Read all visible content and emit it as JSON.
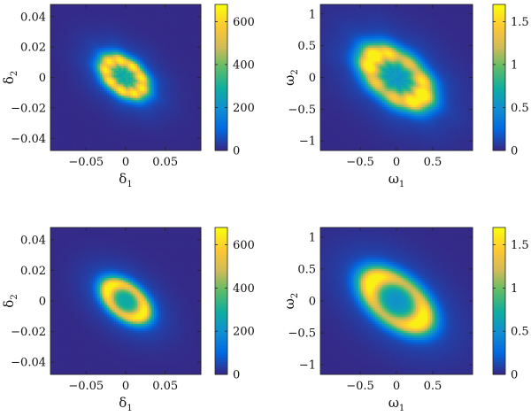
{
  "chart_data": [
    {
      "type": "heatmap",
      "description_key": "delta-density-top",
      "xlabel": "δ",
      "xlabel_sub": "1",
      "ylabel": "δ",
      "ylabel_sub": "2",
      "xlim": [
        -0.095,
        0.095
      ],
      "ylim": [
        -0.048,
        0.048
      ],
      "xticks": [
        -0.05,
        0,
        0.05
      ],
      "xtick_labels": [
        "−0.05",
        "0",
        "0.05"
      ],
      "yticks": [
        -0.04,
        -0.02,
        0,
        0.02,
        0.04
      ],
      "ytick_labels": [
        "−0.04",
        "−0.02",
        "0",
        "0.02",
        "0.04"
      ],
      "colorbar": {
        "min": 0,
        "max": 680,
        "ticks": [
          0,
          200,
          400,
          600
        ],
        "tick_labels": [
          "0",
          "200",
          "400",
          "600"
        ]
      },
      "field": {
        "cx": -0.002,
        "cy": 0.0005,
        "ring_radius": 0.028,
        "angle_deg": -40,
        "aspect": 0.62,
        "peak": 600,
        "center_value": 320,
        "halo": 110,
        "modulation": 0.0,
        "ripple": true
      }
    },
    {
      "type": "heatmap",
      "description_key": "omega-density-top",
      "xlabel": "ω",
      "xlabel_sub": "1",
      "ylabel": "ω",
      "ylabel_sub": "2",
      "xlim": [
        -1.05,
        1.05
      ],
      "ylim": [
        -1.15,
        1.15
      ],
      "xticks": [
        -0.5,
        0,
        0.5
      ],
      "xtick_labels": [
        "−0.5",
        "0",
        "0.5"
      ],
      "yticks": [
        -1,
        -0.5,
        0,
        0.5,
        1
      ],
      "ytick_labels": [
        "−1",
        "−0.5",
        "0",
        "0.5",
        "1"
      ],
      "colorbar": {
        "min": 0,
        "max": 1.7,
        "ticks": [
          0,
          0.5,
          1,
          1.5
        ],
        "tick_labels": [
          "0",
          "0.5",
          "1",
          "1.5"
        ]
      },
      "field": {
        "cx": 0.0,
        "cy": 0.0,
        "ring_radius": 0.45,
        "angle_deg": -40,
        "aspect": 0.6,
        "peak": 1.55,
        "center_value": 0.55,
        "halo": 0.25,
        "modulation": 0.22,
        "ripple": true
      }
    },
    {
      "type": "heatmap",
      "description_key": "delta-density-bottom",
      "xlabel": "δ",
      "xlabel_sub": "1",
      "ylabel": "δ",
      "ylabel_sub": "2",
      "xlim": [
        -0.095,
        0.095
      ],
      "ylim": [
        -0.048,
        0.048
      ],
      "xticks": [
        -0.05,
        0,
        0.05
      ],
      "xtick_labels": [
        "−0.05",
        "0",
        "0.05"
      ],
      "yticks": [
        -0.04,
        -0.02,
        0,
        0.02,
        0.04
      ],
      "ytick_labels": [
        "−0.04",
        "−0.02",
        "0",
        "0.02",
        "0.04"
      ],
      "colorbar": {
        "min": 0,
        "max": 680,
        "ticks": [
          0,
          200,
          400,
          600
        ],
        "tick_labels": [
          "0",
          "200",
          "400",
          "600"
        ]
      },
      "field": {
        "cx": 0.0,
        "cy": 0.0,
        "ring_radius": 0.028,
        "angle_deg": -40,
        "aspect": 0.62,
        "peak": 590,
        "center_value": 300,
        "halo": 110,
        "modulation": 0.18,
        "ripple": false
      }
    },
    {
      "type": "heatmap",
      "description_key": "omega-density-bottom",
      "xlabel": "ω",
      "xlabel_sub": "1",
      "ylabel": "ω",
      "ylabel_sub": "2",
      "xlim": [
        -1.05,
        1.05
      ],
      "ylim": [
        -1.15,
        1.15
      ],
      "xticks": [
        -0.5,
        0,
        0.5
      ],
      "xtick_labels": [
        "−0.5",
        "0",
        "0.5"
      ],
      "yticks": [
        -1,
        -0.5,
        0,
        0.5,
        1
      ],
      "ytick_labels": [
        "−1",
        "−0.5",
        "0",
        "0.5",
        "1"
      ],
      "colorbar": {
        "min": 0,
        "max": 1.7,
        "ticks": [
          0,
          0.5,
          1,
          1.5
        ],
        "tick_labels": [
          "0",
          "0.5",
          "1",
          "1.5"
        ]
      },
      "field": {
        "cx": 0.0,
        "cy": 0.0,
        "ring_radius": 0.45,
        "angle_deg": -40,
        "aspect": 0.6,
        "peak": 1.5,
        "center_value": 0.5,
        "halo": 0.25,
        "modulation": 0.25,
        "ripple": false
      }
    }
  ],
  "colormap": [
    "#352a87",
    "#0268e1",
    "#108ed2",
    "#0fae9f",
    "#5dbc67",
    "#d1bb59",
    "#fec832",
    "#f9fb0e"
  ]
}
